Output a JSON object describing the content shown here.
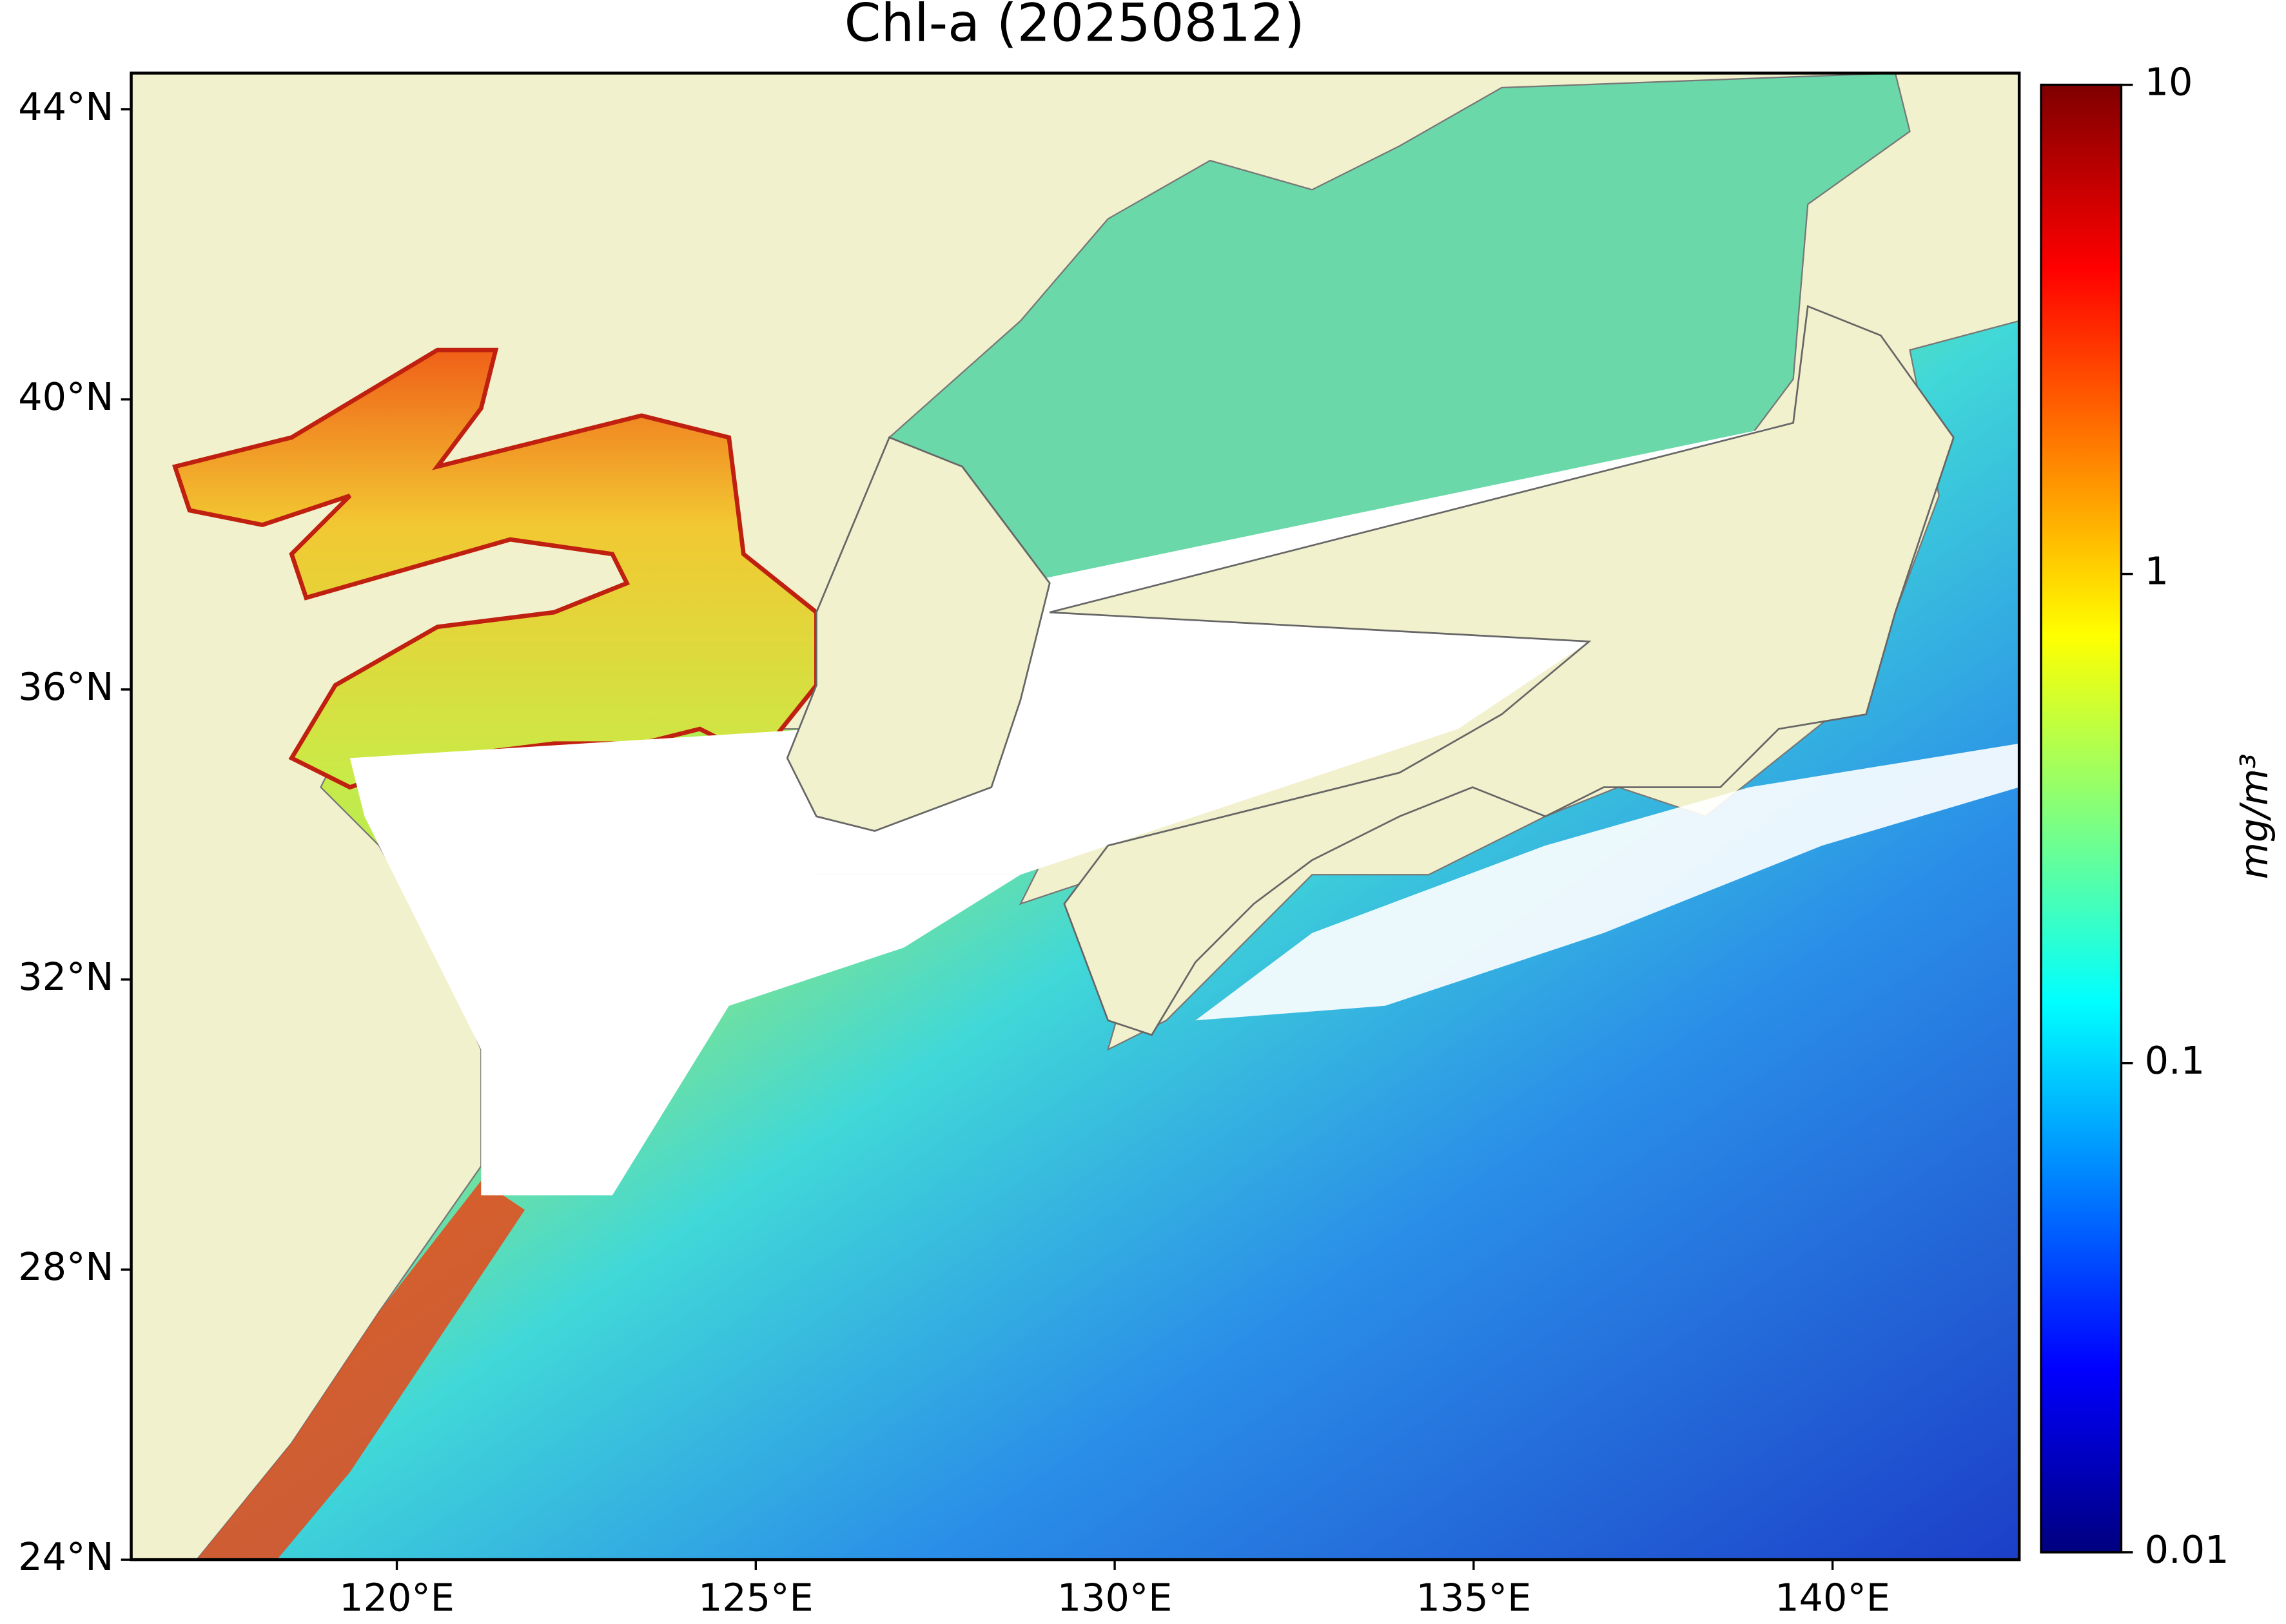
{
  "chart_data": {
    "type": "map",
    "title": "Chl-a (20250812)",
    "xlim": [
      116.3,
      142.6
    ],
    "ylim": [
      24,
      44.5
    ],
    "xticks": [
      {
        "value": 120,
        "label": "120°E"
      },
      {
        "value": 125,
        "label": "125°E"
      },
      {
        "value": 130,
        "label": "130°E"
      },
      {
        "value": 135,
        "label": "135°E"
      },
      {
        "value": 140,
        "label": "140°E"
      }
    ],
    "yticks": [
      {
        "value": 24,
        "label": "24°N"
      },
      {
        "value": 28,
        "label": "28°N"
      },
      {
        "value": 32,
        "label": "32°N"
      },
      {
        "value": 36,
        "label": "36°N"
      },
      {
        "value": 40,
        "label": "40°N"
      },
      {
        "value": 44,
        "label": "44°N"
      }
    ],
    "colorbar": {
      "label": "mg/m³",
      "lim": [
        0.01,
        10
      ],
      "ticks": [
        0.01,
        0.1,
        1,
        10
      ],
      "log_scale": true,
      "colormap": "jet"
    }
  }
}
